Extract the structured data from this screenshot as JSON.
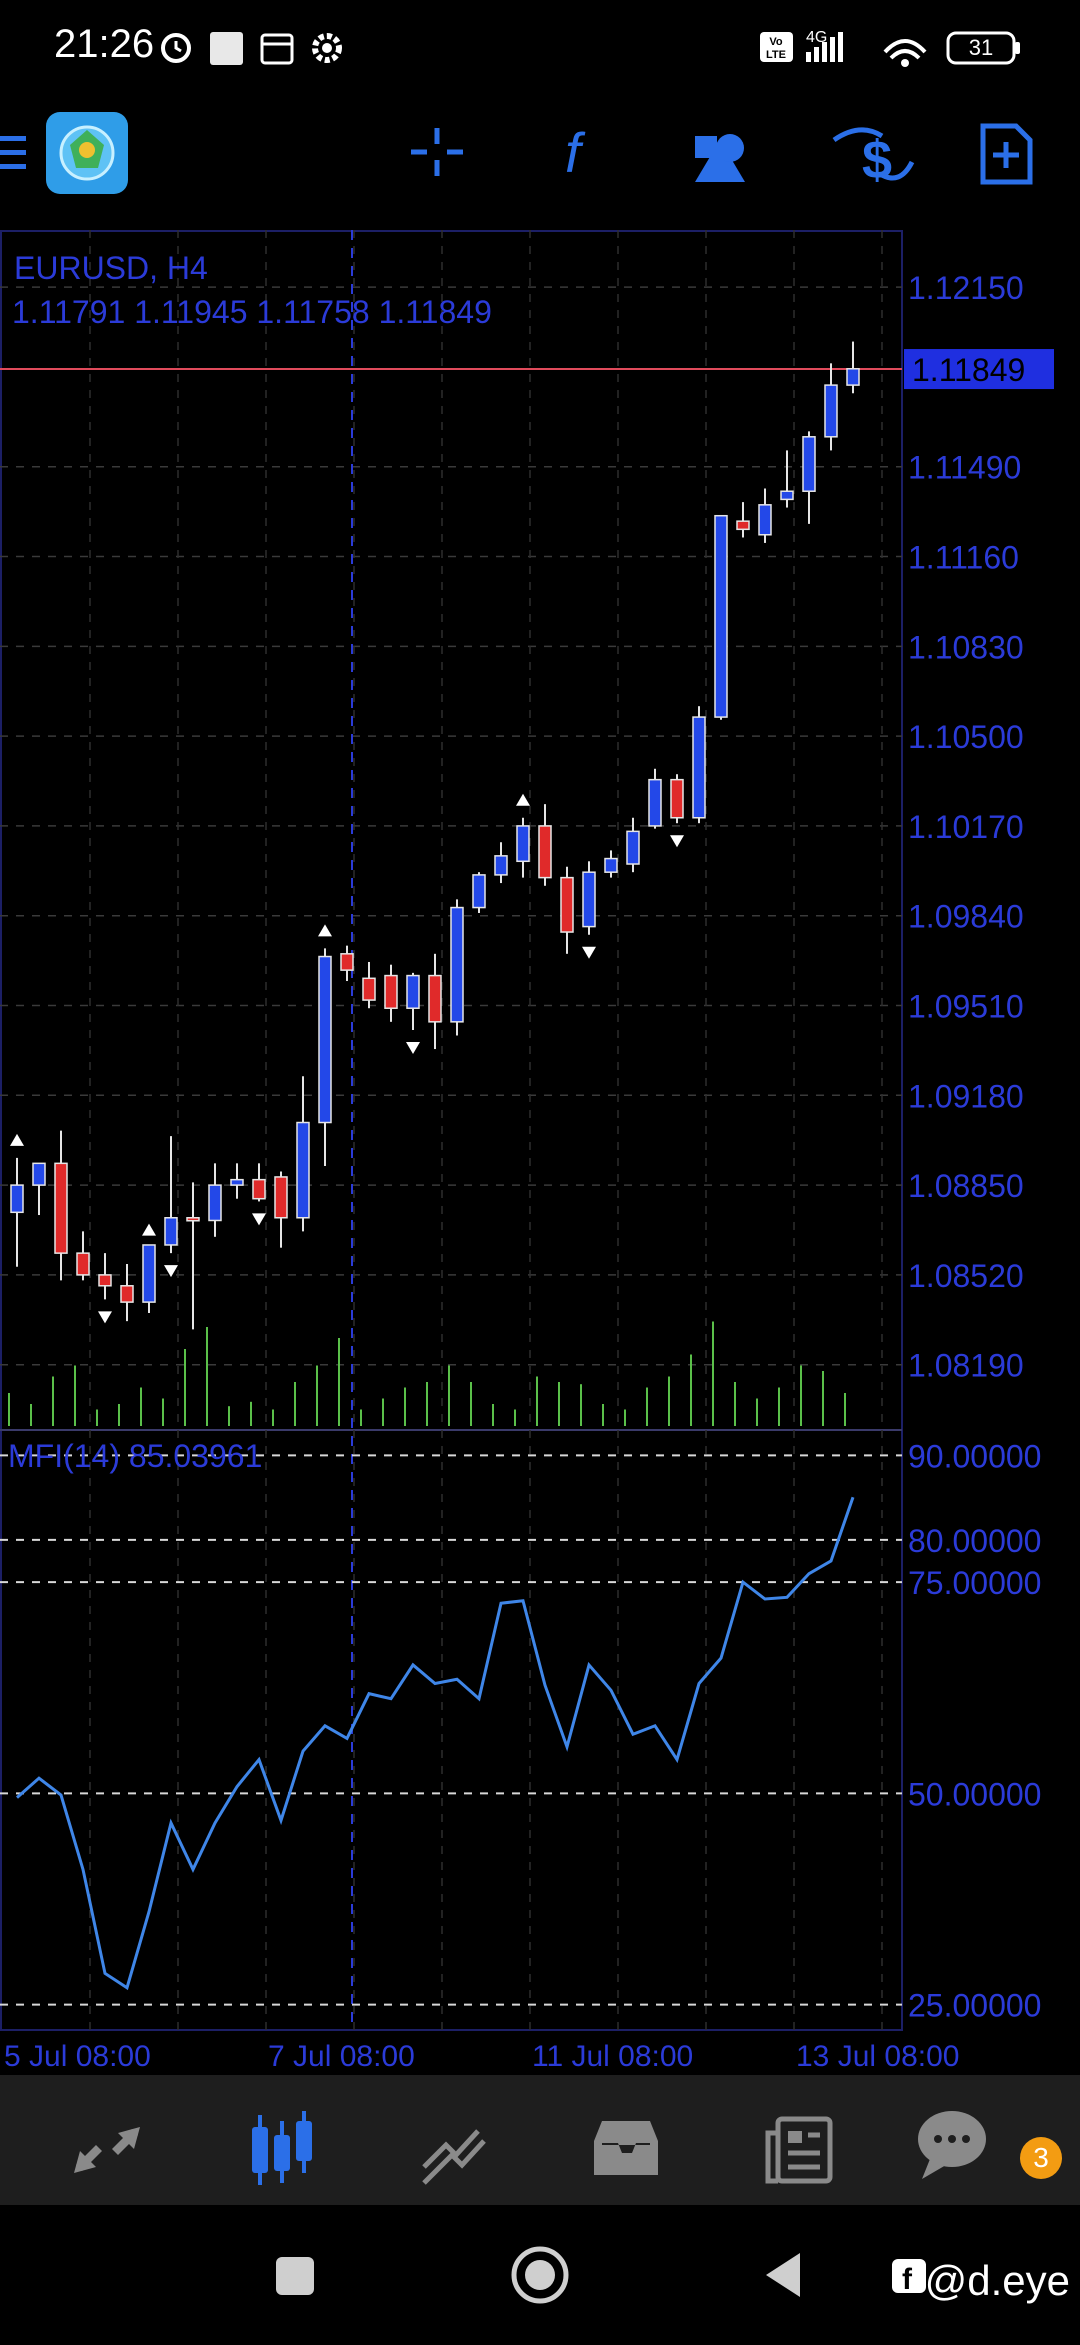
{
  "status_bar": {
    "time": "21:26",
    "network": "4G",
    "volte": "Vo LTE",
    "battery": "31"
  },
  "toolbar": {
    "items": [
      "menu-icon",
      "app-logo",
      "crosshair-icon",
      "indicators-icon",
      "objects-icon",
      "symbol-dollar-icon",
      "new-order-icon"
    ]
  },
  "chart": {
    "symbol": "EURUSD, H4",
    "ohlc": "1.11791 1.11945 1.11758 1.11849",
    "current_price": "1.11849",
    "price_ticks": [
      "1.12150",
      "1.11490",
      "1.11160",
      "1.10830",
      "1.10500",
      "1.10170",
      "1.09840",
      "1.09510",
      "1.09180",
      "1.08850",
      "1.08520",
      "1.08190"
    ],
    "time_ticks": [
      "5 Jul 08:00",
      "7 Jul 08:00",
      "11 Jul 08:00",
      "13 Jul 08:00"
    ],
    "colors": {
      "bull": "#2348e8",
      "bear": "#e02a2a",
      "text": "#2b3bd8",
      "current_bg": "#1f2fe0",
      "current_line": "#e04b5c",
      "mfi_line": "#3f86e8",
      "volume": "#5bc04a"
    }
  },
  "mfi": {
    "label": "MFI(14) 85.03961",
    "levels": [
      "90.00000",
      "80.00000",
      "75.00000",
      "50.00000",
      "25.00000"
    ]
  },
  "chart_data": {
    "type": "candlestick",
    "title": "EURUSD, H4",
    "ylim": [
      1.0795,
      1.1236
    ],
    "candles": [
      {
        "o": 1.0875,
        "h": 1.0895,
        "l": 1.0855,
        "c": 1.0885
      },
      {
        "o": 1.0885,
        "h": 1.089,
        "l": 1.0874,
        "c": 1.0893
      },
      {
        "o": 1.0893,
        "h": 1.0905,
        "l": 1.085,
        "c": 1.086
      },
      {
        "o": 1.086,
        "h": 1.0868,
        "l": 1.085,
        "c": 1.0852
      },
      {
        "o": 1.0852,
        "h": 1.086,
        "l": 1.0843,
        "c": 1.0848
      },
      {
        "o": 1.0848,
        "h": 1.0856,
        "l": 1.0835,
        "c": 1.0842
      },
      {
        "o": 1.0842,
        "h": 1.0862,
        "l": 1.0838,
        "c": 1.0863
      },
      {
        "o": 1.0863,
        "h": 1.0903,
        "l": 1.086,
        "c": 1.0873
      },
      {
        "o": 1.0873,
        "h": 1.0886,
        "l": 1.0832,
        "c": 1.0872
      },
      {
        "o": 1.0872,
        "h": 1.0893,
        "l": 1.0866,
        "c": 1.0885
      },
      {
        "o": 1.0885,
        "h": 1.0893,
        "l": 1.088,
        "c": 1.0887
      },
      {
        "o": 1.0887,
        "h": 1.0893,
        "l": 1.0879,
        "c": 1.088
      },
      {
        "o": 1.0888,
        "h": 1.089,
        "l": 1.0862,
        "c": 1.0873
      },
      {
        "o": 1.0873,
        "h": 1.0925,
        "l": 1.0868,
        "c": 1.0908
      },
      {
        "o": 1.0908,
        "h": 1.0972,
        "l": 1.0892,
        "c": 1.0969
      },
      {
        "o": 1.097,
        "h": 1.0973,
        "l": 1.096,
        "c": 1.0964
      },
      {
        "o": 1.0961,
        "h": 1.0967,
        "l": 1.095,
        "c": 1.0953
      },
      {
        "o": 1.0962,
        "h": 1.0966,
        "l": 1.0945,
        "c": 1.095
      },
      {
        "o": 1.095,
        "h": 1.0963,
        "l": 1.0942,
        "c": 1.0962
      },
      {
        "o": 1.0962,
        "h": 1.097,
        "l": 1.0935,
        "c": 1.0945
      },
      {
        "o": 1.0945,
        "h": 1.099,
        "l": 1.094,
        "c": 1.0987
      },
      {
        "o": 1.0987,
        "h": 1.1,
        "l": 1.0985,
        "c": 1.0999
      },
      {
        "o": 1.0999,
        "h": 1.1011,
        "l": 1.0996,
        "c": 1.1006
      },
      {
        "o": 1.1004,
        "h": 1.102,
        "l": 1.0998,
        "c": 1.1017
      },
      {
        "o": 1.1017,
        "h": 1.1025,
        "l": 1.0995,
        "c": 1.0998
      },
      {
        "o": 1.0998,
        "h": 1.1002,
        "l": 1.097,
        "c": 1.0978
      },
      {
        "o": 1.098,
        "h": 1.1004,
        "l": 1.0977,
        "c": 1.1
      },
      {
        "o": 1.1,
        "h": 1.1008,
        "l": 1.0998,
        "c": 1.1005
      },
      {
        "o": 1.1003,
        "h": 1.102,
        "l": 1.1,
        "c": 1.1015
      },
      {
        "o": 1.1017,
        "h": 1.1038,
        "l": 1.1016,
        "c": 1.1034
      },
      {
        "o": 1.1034,
        "h": 1.1036,
        "l": 1.1018,
        "c": 1.102
      },
      {
        "o": 1.102,
        "h": 1.1061,
        "l": 1.1018,
        "c": 1.1057
      },
      {
        "o": 1.1057,
        "h": 1.1131,
        "l": 1.1056,
        "c": 1.1131
      },
      {
        "o": 1.1129,
        "h": 1.1136,
        "l": 1.1123,
        "c": 1.1126
      },
      {
        "o": 1.1124,
        "h": 1.1141,
        "l": 1.1121,
        "c": 1.1135
      },
      {
        "o": 1.1137,
        "h": 1.1155,
        "l": 1.1134,
        "c": 1.114
      },
      {
        "o": 1.114,
        "h": 1.1162,
        "l": 1.1128,
        "c": 1.116
      },
      {
        "o": 1.116,
        "h": 1.1187,
        "l": 1.1155,
        "c": 1.1179
      },
      {
        "o": 1.1179,
        "h": 1.1195,
        "l": 1.1176,
        "c": 1.1185
      }
    ],
    "fractals_up": [
      0,
      6,
      14,
      23
    ],
    "fractals_down": [
      4,
      7,
      11,
      18,
      26,
      30
    ],
    "volume": [
      30,
      20,
      45,
      55,
      15,
      20,
      35,
      25,
      70,
      90,
      18,
      22,
      15,
      40,
      55,
      80,
      15,
      25,
      35,
      40,
      55,
      40,
      20,
      15,
      45,
      40,
      38,
      20,
      15,
      35,
      45,
      65,
      95,
      40,
      25,
      35,
      55,
      50,
      30
    ],
    "mfi": {
      "ylim": [
        22,
        93
      ],
      "values": [
        49.5,
        51.8,
        49.8,
        41,
        28.7,
        27,
        36,
        46.5,
        41,
        46.5,
        50.8,
        54,
        46.8,
        55,
        58,
        56.5,
        61.8,
        61.2,
        65.2,
        63,
        63.5,
        61.2,
        72.5,
        72.8,
        62.8,
        55.5,
        65.2,
        62.2,
        57,
        58,
        54,
        63,
        66,
        75,
        73,
        73.2,
        76,
        77.5,
        85.04
      ]
    }
  },
  "bottom_nav": {
    "items": [
      "quotes",
      "chart",
      "trade",
      "history",
      "news",
      "messages"
    ],
    "badge": "3"
  },
  "watermark": "@d.eye"
}
